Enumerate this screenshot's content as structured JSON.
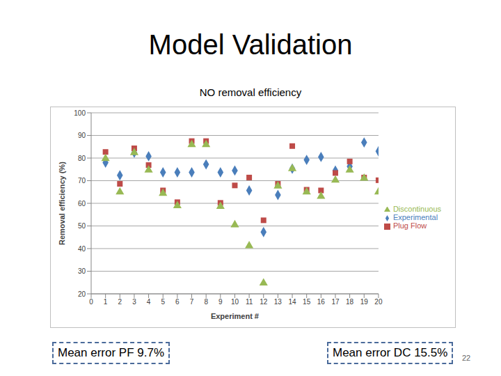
{
  "slide_title": "Model Validation",
  "page_number": "22",
  "chart_data": {
    "type": "scatter",
    "title": "NO removal efficiency",
    "x_label": "Experiment #",
    "y_label": "Removal efficiency (%)",
    "x": [
      1,
      2,
      3,
      4,
      5,
      6,
      7,
      8,
      9,
      10,
      11,
      12,
      13,
      14,
      15,
      16,
      17,
      18,
      19,
      20
    ],
    "series": [
      {
        "name": "Experimental",
        "color": "#4a7ebb",
        "marker": "diamond",
        "values": [
          78,
          72.4,
          82.4,
          80.8,
          73.7,
          73.7,
          73.7,
          77.2,
          73.7,
          74.5,
          65.7,
          47.3,
          63.7,
          75.3,
          79.2,
          80.5,
          74.5,
          76.3,
          86.9,
          83
        ]
      },
      {
        "name": "Plug Flow",
        "color": "#be4b48",
        "marker": "square",
        "values": [
          82.7,
          68.6,
          84.3,
          76.9,
          65.7,
          60.5,
          87.5,
          87.5,
          60.2,
          67.9,
          71.4,
          52.5,
          68.6,
          85.3,
          66,
          65.7,
          73.4,
          78.5,
          71.4,
          70.2
        ]
      },
      {
        "name": "Discontinuous",
        "color": "#98b954",
        "marker": "triangle",
        "values": [
          79.8,
          65,
          82.4,
          74.7,
          64.4,
          58.9,
          85.9,
          85.9,
          58.6,
          50.5,
          41.2,
          24.8,
          67.6,
          75.3,
          65,
          63.1,
          70.2,
          74.7,
          71.1,
          65
        ]
      }
    ],
    "xlim": [
      0,
      20
    ],
    "xticks": [
      0,
      1,
      2,
      3,
      4,
      5,
      6,
      7,
      8,
      9,
      10,
      11,
      12,
      13,
      14,
      15,
      16,
      17,
      18,
      19,
      20
    ],
    "ylim": [
      20,
      100
    ],
    "yticks": [
      20,
      30,
      40,
      50,
      60,
      70,
      80,
      90,
      100
    ],
    "grid": true,
    "legend": "right",
    "annotations": [
      "Mean error PF 9.7%",
      "Mean error DC 15.5%"
    ]
  }
}
